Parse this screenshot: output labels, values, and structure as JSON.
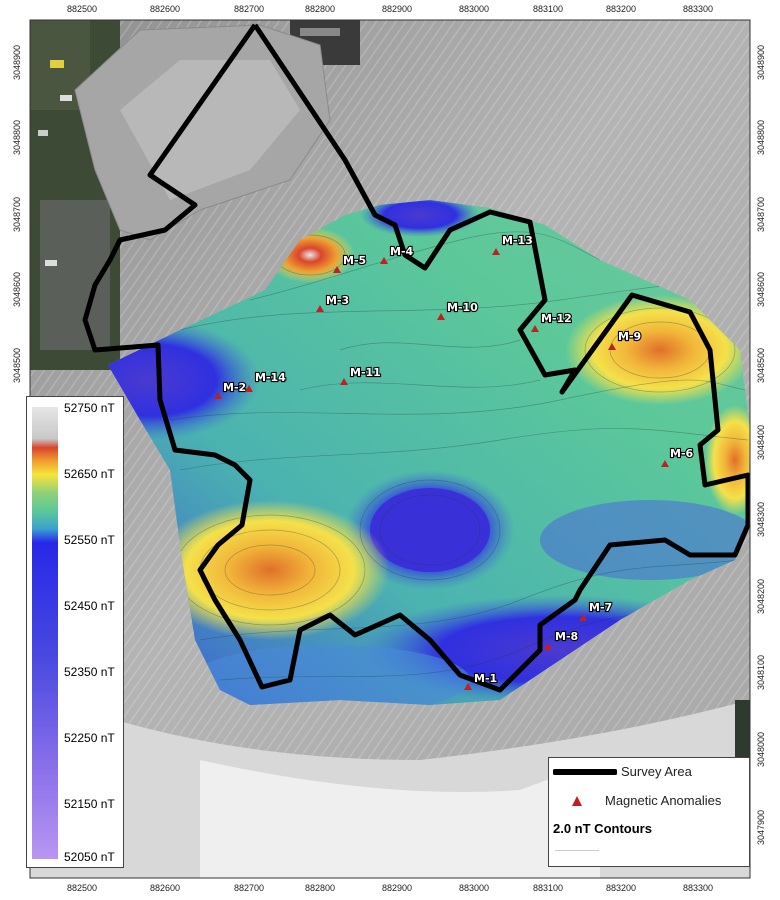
{
  "axes": {
    "x_ticks": [
      "882500",
      "882600",
      "882700",
      "882800",
      "882900",
      "883000",
      "883100",
      "883200",
      "883300"
    ],
    "y_ticks": [
      "3048900",
      "3048800",
      "3048700",
      "3048600",
      "3048500",
      "3048400",
      "3048300",
      "3048200",
      "3048100",
      "3048000",
      "3047900"
    ]
  },
  "colorbar": {
    "labels": [
      "52750 nT",
      "52650 nT",
      "52550 nT",
      "52450 nT",
      "52350 nT",
      "52250 nT",
      "52150 nT",
      "52050 nT"
    ],
    "colors": {
      "high": "#e8e8e8",
      "red": "#d9452c",
      "orange": "#f0a030",
      "yellow": "#f6e43a",
      "green": "#5cc89a",
      "blue": "#3030e0",
      "violet": "#b088f0"
    }
  },
  "anomalies": [
    {
      "label": "M-1"
    },
    {
      "label": "M-2"
    },
    {
      "label": "M-3"
    },
    {
      "label": "M-4"
    },
    {
      "label": "M-5"
    },
    {
      "label": "M-6"
    },
    {
      "label": "M-7"
    },
    {
      "label": "M-8"
    },
    {
      "label": "M-9"
    },
    {
      "label": "M-10"
    },
    {
      "label": "M-11"
    },
    {
      "label": "M-12"
    },
    {
      "label": "M-13"
    },
    {
      "label": "M-14"
    }
  ],
  "legend": {
    "survey_area": "Survey Area",
    "magnetic_anomalies": "Magnetic Anomalies",
    "contours": "2.0 nT Contours"
  }
}
